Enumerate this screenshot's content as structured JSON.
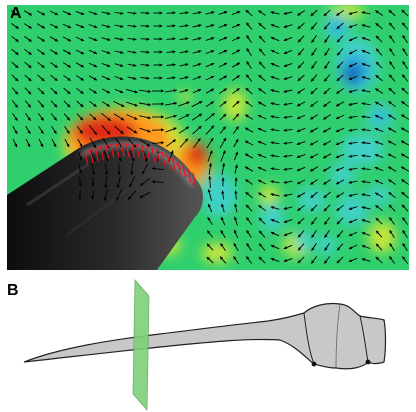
{
  "panels": {
    "a": {
      "label": "A"
    },
    "b": {
      "label": "B"
    }
  },
  "colors": {
    "field_background": "#2fcf6e",
    "high_positive": "#e02a14",
    "positive": "#ff9a1e",
    "weak_positive": "#c8e63a",
    "weak_negative": "#3fd0c8",
    "negative": "#27a3e0",
    "strong_negative": "#0b4ca6",
    "wing_section": "#222222",
    "velocity_arrow": "#000000",
    "surface_vectors": "#e8141e",
    "silhouette_fill": "#c8c8c8",
    "cutting_plane": "#7ed07a"
  },
  "icons": {
    "a": "flow-field-image",
    "b": "bat-wing-silhouette"
  }
}
